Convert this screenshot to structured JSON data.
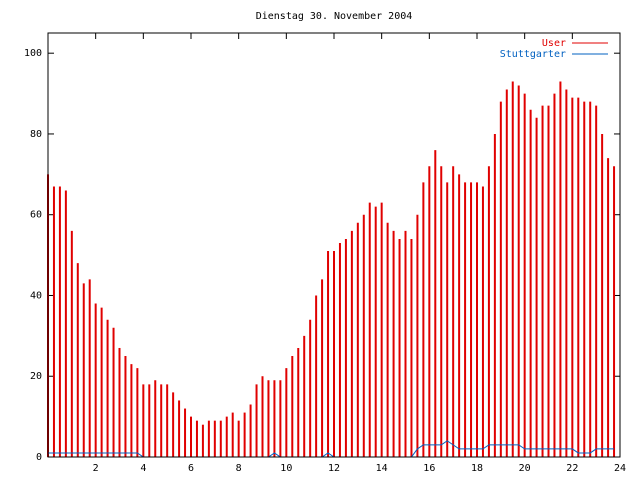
{
  "chart_data": {
    "type": "impulses",
    "title": "Dienstag 30. November 2004",
    "x": [
      0,
      0.25,
      0.5,
      0.75,
      1,
      1.25,
      1.5,
      1.75,
      2,
      2.25,
      2.5,
      2.75,
      3,
      3.25,
      3.5,
      3.75,
      4,
      4.25,
      4.5,
      4.75,
      5,
      5.25,
      5.5,
      5.75,
      6,
      6.25,
      6.5,
      6.75,
      7,
      7.25,
      7.5,
      7.75,
      8,
      8.25,
      8.5,
      8.75,
      9,
      9.25,
      9.5,
      9.75,
      10,
      10.25,
      10.5,
      10.75,
      11,
      11.25,
      11.5,
      11.75,
      12,
      12.25,
      12.5,
      12.75,
      13,
      13.25,
      13.5,
      13.75,
      14,
      14.25,
      14.5,
      14.75,
      15,
      15.25,
      15.5,
      15.75,
      16,
      16.25,
      16.5,
      16.75,
      17,
      17.25,
      17.5,
      17.75,
      18,
      18.25,
      18.5,
      18.75,
      19,
      19.25,
      19.5,
      19.75,
      20,
      20.25,
      20.5,
      20.75,
      21,
      21.25,
      21.5,
      21.75,
      22,
      22.25,
      22.5,
      22.75,
      23,
      23.25,
      23.5,
      23.75
    ],
    "series": [
      {
        "name": "User",
        "color": "#e00000",
        "style": "impulses",
        "values": [
          70,
          67,
          67,
          66,
          56,
          48,
          43,
          44,
          38,
          37,
          34,
          32,
          27,
          25,
          23,
          22,
          18,
          18,
          19,
          18,
          18,
          16,
          14,
          12,
          10,
          9,
          8,
          9,
          9,
          9,
          10,
          11,
          9,
          11,
          13,
          18,
          20,
          19,
          19,
          19,
          22,
          25,
          27,
          30,
          34,
          40,
          44,
          51,
          51,
          53,
          54,
          56,
          58,
          60,
          63,
          62,
          63,
          58,
          56,
          54,
          56,
          54,
          60,
          68,
          72,
          76,
          72,
          68,
          72,
          70,
          68,
          68,
          68,
          67,
          72,
          80,
          88,
          91,
          93,
          92,
          90,
          86,
          84,
          87,
          87,
          90,
          93,
          91,
          89,
          89,
          88,
          88,
          87,
          80,
          74,
          72
        ]
      },
      {
        "name": "Stuttgarter",
        "color": "#0060c0",
        "style": "line",
        "values": [
          1,
          1,
          1,
          1,
          1,
          1,
          1,
          1,
          1,
          1,
          1,
          1,
          1,
          1,
          1,
          1,
          0,
          0,
          0,
          0,
          0,
          0,
          0,
          0,
          0,
          0,
          0,
          0,
          0,
          0,
          0,
          0,
          0,
          0,
          0,
          0,
          0,
          0,
          1,
          0,
          0,
          0,
          0,
          0,
          0,
          0,
          0,
          1,
          0,
          0,
          0,
          0,
          0,
          0,
          0,
          0,
          0,
          0,
          0,
          0,
          0,
          0,
          2,
          3,
          3,
          3,
          3,
          4,
          3,
          2,
          2,
          2,
          2,
          2,
          3,
          3,
          3,
          3,
          3,
          3,
          2,
          2,
          2,
          2,
          2,
          2,
          2,
          2,
          2,
          1,
          1,
          1,
          2,
          2,
          2,
          2
        ]
      }
    ],
    "xlim": [
      0,
      24
    ],
    "xticks": [
      2,
      4,
      6,
      8,
      10,
      12,
      14,
      16,
      18,
      20,
      22,
      24
    ],
    "ylim": [
      0,
      105
    ],
    "yticks": [
      0,
      20,
      40,
      60,
      80,
      100
    ],
    "legend": "top-right"
  }
}
